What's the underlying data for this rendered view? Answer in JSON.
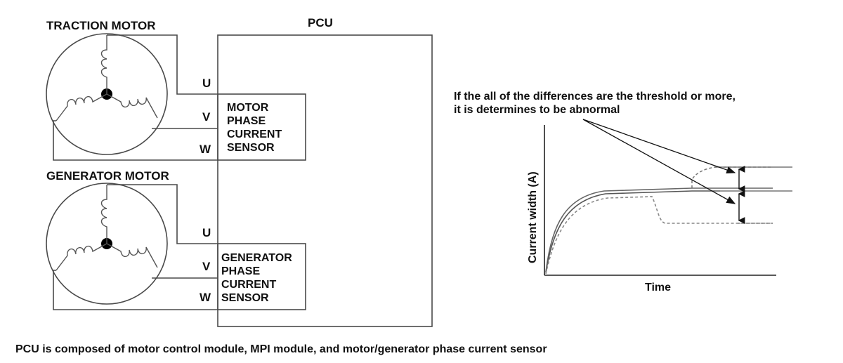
{
  "traction": {
    "title": "TRACTION MOTOR",
    "sensor_lines": [
      "MOTOR",
      "PHASE",
      "CURRENT",
      "SENSOR"
    ]
  },
  "generator": {
    "title": "GENERATOR MOTOR",
    "sensor_lines": [
      "GENERATOR",
      "PHASE",
      "CURRENT",
      "SENSOR"
    ]
  },
  "phases": [
    "U",
    "V",
    "W"
  ],
  "pcu": {
    "label": "PCU"
  },
  "graph": {
    "note_lines": [
      "If the all of the differences are the threshold or more,",
      "it is determines to be abnormal"
    ],
    "ylabel": "Current width (A)",
    "xlabel": "Time"
  },
  "footer": "PCU is composed of motor control module, MPI module, and motor/generator phase current sensor"
}
